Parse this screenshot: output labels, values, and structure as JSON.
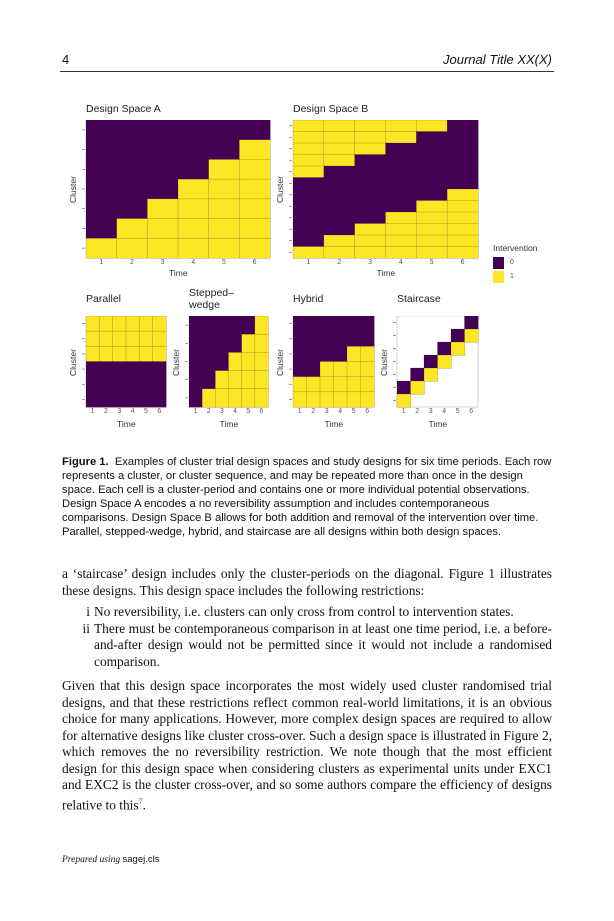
{
  "header": {
    "page_number": "4",
    "journal_title": "Journal Title XX(X)"
  },
  "figure": {
    "colors": {
      "0": "#440154",
      "1": "#FDE725",
      "empty": "#ffffff"
    },
    "legend": {
      "title": "Intervention",
      "items": [
        "0",
        "1"
      ]
    }
  },
  "chart_data": [
    {
      "type": "heatmap",
      "title": "Design Space A",
      "xlabel": "Time",
      "ylabel": "Cluster",
      "x": [
        1,
        2,
        3,
        4,
        5,
        6
      ],
      "rows": [
        [
          0,
          0,
          0,
          0,
          0,
          0
        ],
        [
          0,
          0,
          0,
          0,
          0,
          1
        ],
        [
          0,
          0,
          0,
          0,
          1,
          1
        ],
        [
          0,
          0,
          0,
          1,
          1,
          1
        ],
        [
          0,
          0,
          1,
          1,
          1,
          1
        ],
        [
          0,
          1,
          1,
          1,
          1,
          1
        ],
        [
          1,
          1,
          1,
          1,
          1,
          1
        ]
      ]
    },
    {
      "type": "heatmap",
      "title": "Design Space B",
      "xlabel": "Time",
      "ylabel": "Cluster",
      "x": [
        1,
        2,
        3,
        4,
        5,
        6
      ],
      "rows": [
        [
          1,
          1,
          1,
          1,
          1,
          0
        ],
        [
          1,
          1,
          1,
          1,
          0,
          0
        ],
        [
          1,
          1,
          1,
          0,
          0,
          0
        ],
        [
          1,
          1,
          0,
          0,
          0,
          0
        ],
        [
          1,
          0,
          0,
          0,
          0,
          0
        ],
        [
          0,
          0,
          0,
          0,
          0,
          0
        ],
        [
          0,
          0,
          0,
          0,
          0,
          1
        ],
        [
          0,
          0,
          0,
          0,
          1,
          1
        ],
        [
          0,
          0,
          0,
          1,
          1,
          1
        ],
        [
          0,
          0,
          1,
          1,
          1,
          1
        ],
        [
          0,
          1,
          1,
          1,
          1,
          1
        ],
        [
          1,
          1,
          1,
          1,
          1,
          1
        ]
      ],
      "legend": {
        "title": "Intervention",
        "values": [
          "0",
          "1"
        ],
        "placement": "right"
      }
    },
    {
      "type": "heatmap",
      "title": "Parallel",
      "xlabel": "Time",
      "ylabel": "Cluster",
      "x": [
        1,
        2,
        3,
        4,
        5,
        6
      ],
      "rows": [
        [
          1,
          1,
          1,
          1,
          1,
          1
        ],
        [
          1,
          1,
          1,
          1,
          1,
          1
        ],
        [
          1,
          1,
          1,
          1,
          1,
          1
        ],
        [
          0,
          0,
          0,
          0,
          0,
          0
        ],
        [
          0,
          0,
          0,
          0,
          0,
          0
        ],
        [
          0,
          0,
          0,
          0,
          0,
          0
        ]
      ]
    },
    {
      "type": "heatmap",
      "title": "Stepped–\nwedge",
      "xlabel": "Time",
      "ylabel": "Cluster",
      "x": [
        1,
        2,
        3,
        4,
        5,
        6
      ],
      "rows": [
        [
          0,
          0,
          0,
          0,
          0,
          1
        ],
        [
          0,
          0,
          0,
          0,
          1,
          1
        ],
        [
          0,
          0,
          0,
          1,
          1,
          1
        ],
        [
          0,
          0,
          1,
          1,
          1,
          1
        ],
        [
          0,
          1,
          1,
          1,
          1,
          1
        ]
      ]
    },
    {
      "type": "heatmap",
      "title": "Hybrid",
      "xlabel": "Time",
      "ylabel": "Cluster",
      "x": [
        1,
        2,
        3,
        4,
        5,
        6
      ],
      "rows": [
        [
          0,
          0,
          0,
          0,
          0,
          0
        ],
        [
          0,
          0,
          0,
          0,
          0,
          0
        ],
        [
          0,
          0,
          0,
          0,
          1,
          1
        ],
        [
          0,
          0,
          1,
          1,
          1,
          1
        ],
        [
          1,
          1,
          1,
          1,
          1,
          1
        ],
        [
          1,
          1,
          1,
          1,
          1,
          1
        ]
      ]
    },
    {
      "type": "heatmap",
      "title": "Staircase",
      "xlabel": "Time",
      "ylabel": "Cluster",
      "x": [
        1,
        2,
        3,
        4,
        5,
        6
      ],
      "rows": [
        [
          null,
          null,
          null,
          null,
          null,
          0
        ],
        [
          null,
          null,
          null,
          null,
          0,
          1
        ],
        [
          null,
          null,
          null,
          0,
          1,
          null
        ],
        [
          null,
          null,
          0,
          1,
          null,
          null
        ],
        [
          null,
          0,
          1,
          null,
          null,
          null
        ],
        [
          0,
          1,
          null,
          null,
          null,
          null
        ],
        [
          1,
          null,
          null,
          null,
          null,
          null
        ]
      ]
    }
  ],
  "caption": {
    "label": "Figure 1.",
    "text": "Examples of cluster trial design spaces and study designs for six time periods. Each row represents a cluster, or cluster sequence, and may be repeated more than once in the design space. Each cell is a cluster-period and contains one or more individual potential observations. Design Space A encodes a no reversibility assumption and includes contemporaneous comparisons. Design Space B allows for both addition and removal of the intervention over time. Parallel, stepped-wedge, hybrid, and staircase are all designs within both design spaces."
  },
  "body": {
    "para1": "a ‘staircase’ design includes only the cluster-periods on the diagonal. Figure 1 illustrates these designs. This design space includes the following restrictions:",
    "list": [
      {
        "num": "i",
        "text": "No reversibility, i.e. clusters can only cross from control to intervention states."
      },
      {
        "num": "ii",
        "text": "There must be contemporaneous comparison in at least one time period, i.e. a before-and-after design would not be permitted since it would not include a randomised comparison."
      }
    ],
    "para2": "Given that this design space incorporates the most widely used cluster randomised trial designs, and that these restrictions reflect common real-world limitations, it is an obvious choice for many applications. However, more complex design spaces are required to allow for alternative designs like cluster cross-over. Such a design space is illustrated in Figure 2, which removes the no reversibility restriction. We note though that the most efficient design for this design space when considering clusters as experimental units under EXC1 and EXC2 is the cluster cross-over, and so some authors compare the efficiency of designs relative to this",
    "para2_ref": "7",
    "para2_end": "."
  },
  "footer": {
    "prepared": "Prepared using",
    "cls": "sagej.cls"
  }
}
